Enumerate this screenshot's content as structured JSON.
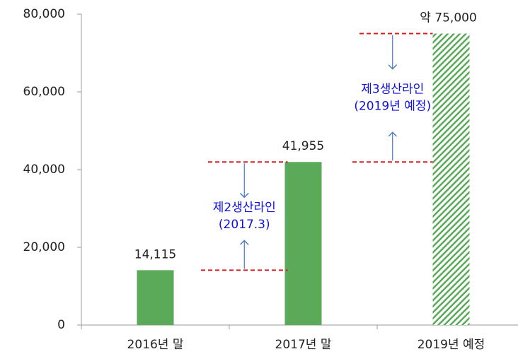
{
  "chart_data": {
    "type": "bar",
    "categories": [
      "2016년 말",
      "2017년 말",
      "2019년 예정"
    ],
    "values": [
      14115,
      41955,
      75000
    ],
    "value_labels": [
      "14,115",
      "41,955",
      "약 75,000"
    ],
    "color": "#5aaa5a",
    "hatched": [
      false,
      false,
      true
    ],
    "ylim": [
      0,
      80000
    ],
    "yticks": [
      {
        "value": 0,
        "label": "0"
      },
      {
        "value": 20000,
        "label": "20,000"
      },
      {
        "value": 40000,
        "label": "40,000"
      },
      {
        "value": 60000,
        "label": "60,000"
      },
      {
        "value": 80000,
        "label": "80,000"
      }
    ],
    "annotations": [
      {
        "lines": [
          "제2생산라인",
          "(2017.3)"
        ]
      },
      {
        "lines": [
          "제3생산라인",
          "(2019년 예정)"
        ]
      }
    ]
  }
}
